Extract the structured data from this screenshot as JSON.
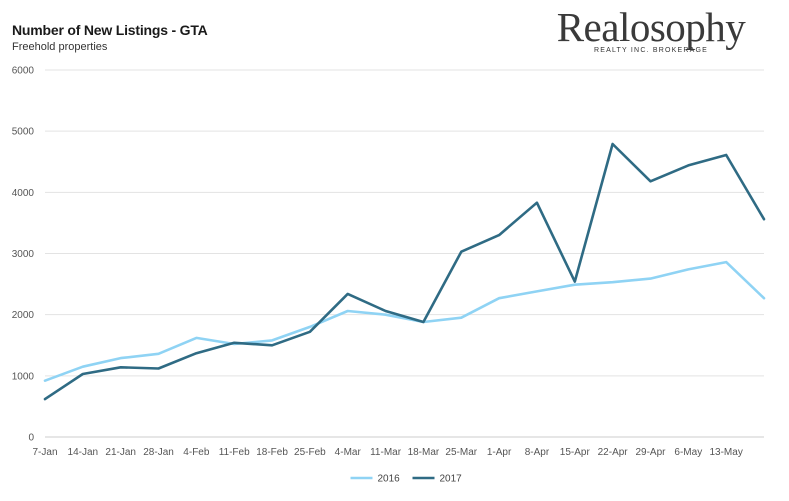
{
  "chart_data": {
    "type": "line",
    "title": "Number of New Listings - GTA",
    "subtitle": "Freehold properties",
    "xlabel": "",
    "ylabel": "",
    "categories": [
      "7-Jan",
      "14-Jan",
      "21-Jan",
      "28-Jan",
      "4-Feb",
      "11-Feb",
      "18-Feb",
      "25-Feb",
      "4-Mar",
      "11-Mar",
      "18-Mar",
      "25-Mar",
      "1-Apr",
      "8-Apr",
      "15-Apr",
      "22-Apr",
      "29-Apr",
      "6-May",
      "13-May",
      ""
    ],
    "ylim": [
      0,
      6000
    ],
    "yticks": [
      0,
      1000,
      2000,
      3000,
      4000,
      5000,
      6000
    ],
    "grid": true,
    "legend_position": "bottom-center",
    "series": [
      {
        "name": "2016",
        "color": "#8fd3f4",
        "values": [
          920,
          1150,
          1290,
          1360,
          1620,
          1520,
          1580,
          1800,
          2060,
          2000,
          1880,
          1950,
          2270,
          2380,
          2490,
          2530,
          2590,
          2740,
          2860,
          2270
        ]
      },
      {
        "name": "2017",
        "color": "#2f6b84",
        "values": [
          620,
          1030,
          1140,
          1120,
          1370,
          1540,
          1500,
          1720,
          2340,
          2060,
          1880,
          3030,
          3300,
          3830,
          2540,
          4790,
          4180,
          4440,
          4610,
          3560
        ]
      }
    ]
  },
  "brand": {
    "name": "Realosophy",
    "tagline": "REALTY INC. BROKERAGE"
  }
}
